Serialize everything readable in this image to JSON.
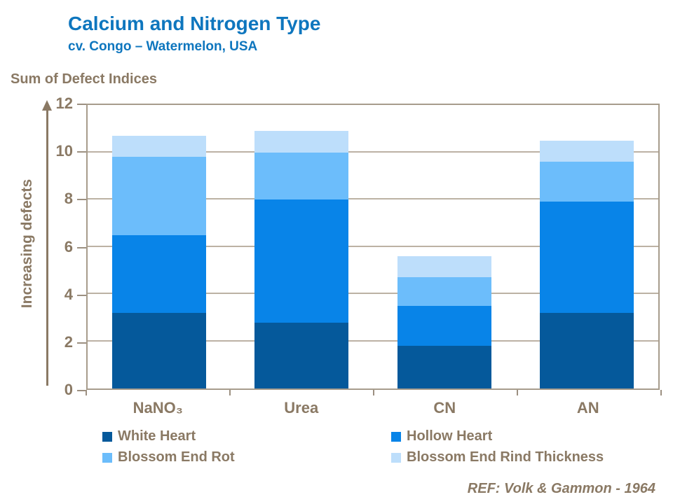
{
  "header": {
    "title": "Calcium and Nitrogen Type",
    "subtitle": "cv. Congo – Watermelon, USA"
  },
  "axis": {
    "y_axis_title": "Sum of Defect Indices",
    "y_direction_label": "Increasing defects"
  },
  "footer": {
    "reference": "REF: Volk & Gammon - 1964"
  },
  "colors": {
    "title_blue": "#0E76BE",
    "text_brown": "#8A7964",
    "axis_border": "#A79C8C",
    "gridline": "#BCB2A4",
    "tick": "#9C9081"
  },
  "chart_data": {
    "type": "bar",
    "stacked": true,
    "title": "Calcium and Nitrogen Type",
    "subtitle": "cv. Congo – Watermelon, USA",
    "xlabel": "",
    "ylabel": "Increasing defects",
    "y_axis_title": "Sum of Defect Indices",
    "categories": [
      "NaNO₃",
      "Urea",
      "CN",
      "AN"
    ],
    "series": [
      {
        "name": "White Heart",
        "color": "#05599B",
        "values": [
          3.2,
          2.8,
          1.8,
          3.2
        ]
      },
      {
        "name": "Hollow Heart",
        "color": "#0884E8",
        "values": [
          3.3,
          5.2,
          1.7,
          4.7
        ]
      },
      {
        "name": "Blossom End Rot",
        "color": "#6CBDFB",
        "values": [
          3.3,
          2.0,
          1.2,
          1.7
        ]
      },
      {
        "name": "Blossom End Rind Thickness",
        "color": "#BDDEFB",
        "values": [
          0.9,
          0.9,
          0.9,
          0.9
        ]
      }
    ],
    "totals": [
      10.7,
      10.9,
      5.6,
      10.5
    ],
    "ylim": [
      0,
      12
    ],
    "yticks": [
      0,
      2,
      4,
      6,
      8,
      10,
      12
    ],
    "grid": true,
    "legend_position": "bottom"
  }
}
